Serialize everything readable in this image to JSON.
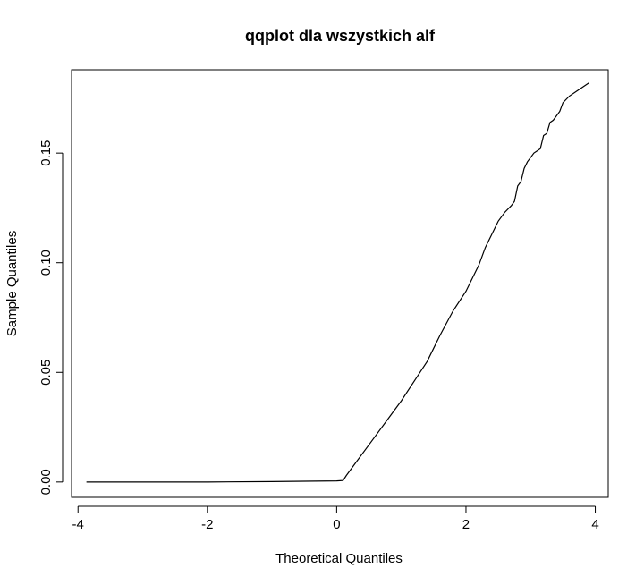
{
  "chart_data": {
    "type": "line",
    "title": "qqplot dla wszystkich alf",
    "xlabel": "Theoretical Quantiles",
    "ylabel": "Sample Quantiles",
    "xlim": [
      -4.1,
      4.2
    ],
    "ylim": [
      -0.007,
      0.188
    ],
    "x_ticks": [
      -4,
      -2,
      0,
      2,
      4
    ],
    "x_tick_labels": [
      "-4",
      "-2",
      "0",
      "2",
      "4"
    ],
    "y_ticks": [
      0.0,
      0.05,
      0.1,
      0.15
    ],
    "y_tick_labels": [
      "0.00",
      "0.05",
      "0.10",
      "0.15"
    ],
    "grid": false,
    "legend": "none",
    "line_color": "#000000",
    "series": [
      {
        "x": [
          -3.87,
          -3.0,
          -2.0,
          -1.0,
          0.0,
          0.1,
          0.15,
          0.3,
          0.5,
          0.8,
          1.0,
          1.2,
          1.4,
          1.5,
          1.6,
          1.8,
          2.0,
          2.1,
          2.2,
          2.3,
          2.4,
          2.5,
          2.6,
          2.7,
          2.75,
          2.8,
          2.85,
          2.9,
          2.95,
          3.0,
          3.05,
          3.1,
          3.15,
          3.2,
          3.25,
          3.3,
          3.35,
          3.4,
          3.45,
          3.5,
          3.6,
          3.7,
          3.8,
          3.9
        ],
        "y": [
          0.0,
          0.0,
          0.0,
          0.0002,
          0.0005,
          0.0007,
          0.003,
          0.009,
          0.017,
          0.029,
          0.037,
          0.046,
          0.055,
          0.061,
          0.067,
          0.078,
          0.087,
          0.093,
          0.099,
          0.107,
          0.113,
          0.119,
          0.123,
          0.126,
          0.128,
          0.135,
          0.137,
          0.143,
          0.146,
          0.148,
          0.15,
          0.151,
          0.152,
          0.158,
          0.159,
          0.164,
          0.165,
          0.167,
          0.169,
          0.173,
          0.176,
          0.178,
          0.18,
          0.182
        ]
      }
    ]
  }
}
